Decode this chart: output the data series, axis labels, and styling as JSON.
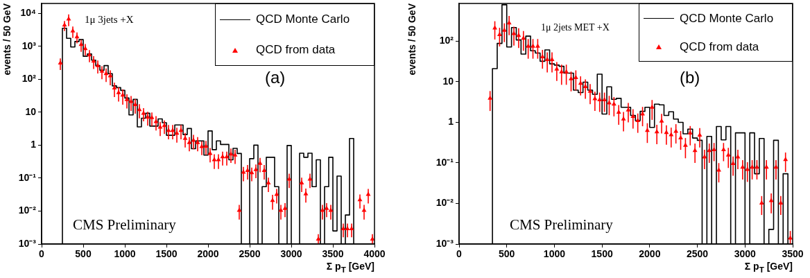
{
  "chart_data": [
    {
      "type": "histogram",
      "xlabel": "Σ p$_{T}$ [GeV]",
      "ylabel": "events / 50 GeV",
      "annotations": [
        "1μ 3jets +X",
        "(a)",
        "CMS Preliminary"
      ],
      "xlim": [
        0,
        4000
      ],
      "xticks": [
        0,
        500,
        1000,
        1500,
        2000,
        2500,
        3000,
        3500,
        4000
      ],
      "ylim": [
        0.001,
        20000
      ],
      "yticks": [
        {
          "value": 0.001,
          "label": "10⁻³"
        },
        {
          "value": 0.01,
          "label": "10⁻²"
        },
        {
          "value": 0.1,
          "label": "10⁻¹"
        },
        {
          "value": 1,
          "label": "1"
        },
        {
          "value": 10,
          "label": "10"
        },
        {
          "value": 100,
          "label": "10²"
        },
        {
          "value": 1000,
          "label": "10³"
        },
        {
          "value": 10000,
          "label": "10⁴"
        }
      ],
      "log": "y",
      "legend": "top right",
      "marker": "triangle",
      "series": [
        {
          "name": "QCD Monte Carlo",
          "type": "histogram",
          "color": "#000000",
          "bins": [
            250,
            300,
            350,
            400,
            450,
            500,
            550,
            600,
            650,
            700,
            750,
            800,
            850,
            900,
            950,
            1000,
            1050,
            1100,
            1150,
            1200,
            1250,
            1300,
            1350,
            1400,
            1450,
            1500,
            1550,
            1600,
            1650,
            1700,
            1750,
            1800,
            1850,
            1900,
            1950,
            2000,
            2050,
            2100,
            2150,
            2200,
            2250,
            2300,
            2350,
            2400,
            2450,
            2500,
            2550,
            2600,
            2650,
            2700,
            2750,
            2800,
            2850,
            2900,
            2950,
            3000,
            3050,
            3100,
            3150,
            3200,
            3250,
            3300,
            3350,
            3400,
            3450,
            3500,
            3550,
            3600,
            3650,
            3700,
            3750
          ],
          "values": [
            3550,
            1750,
            960,
            1400,
            1600,
            500,
            590,
            380,
            260,
            188,
            260,
            148,
            63,
            56,
            46,
            27,
            8.3,
            24.5,
            3.6,
            6.6,
            9.3,
            3.8,
            3.8,
            6.3,
            4.8,
            2.0,
            2.0,
            4.1,
            4.1,
            2.1,
            3.2,
            0.78,
            1.35,
            1.35,
            0.5,
            2.7,
            0.73,
            1.35,
            1.05,
            1.05,
            0.36,
            0.8,
            0.56,
            null,
            null,
            0.39,
            1.0,
            null,
            0.055,
            0.43,
            0.43,
            0.055,
            null,
            null,
            0.98,
            null,
            null,
            0.57,
            0.43,
            0.57,
            0.055,
            0.36,
            null,
            0.055,
            0.43,
            0.0025,
            0.115,
            null,
            0.0076,
            1.6
          ]
        },
        {
          "name": "QCD from data",
          "type": "scatter",
          "color": "#ff0000",
          "x": [
            225,
            275,
            325,
            375,
            425,
            475,
            525,
            575,
            625,
            675,
            725,
            775,
            825,
            875,
            925,
            975,
            1025,
            1075,
            1125,
            1175,
            1225,
            1275,
            1325,
            1375,
            1425,
            1475,
            1525,
            1575,
            1625,
            1675,
            1725,
            1775,
            1825,
            1875,
            1925,
            1975,
            2025,
            2075,
            2125,
            2175,
            2225,
            2275,
            2325,
            2375,
            2425,
            2475,
            2525,
            2575,
            2625,
            2675,
            2725,
            2775,
            2825,
            2875,
            2925,
            2975,
            3125,
            3175,
            3225,
            3325,
            3375,
            3425,
            3475,
            3625,
            3675,
            3725,
            3825,
            3875,
            3925,
            3975
          ],
          "values": [
            310,
            4400,
            6700,
            2900,
            1940,
            1130,
            850,
            550,
            355,
            260,
            175,
            148,
            126,
            54,
            39,
            33,
            24,
            21,
            17,
            12,
            9.3,
            7.1,
            6.8,
            5.2,
            3.5,
            3.9,
            2.8,
            2.8,
            2.3,
            2.8,
            1.6,
            1.2,
            1.4,
            1.2,
            0.9,
            0.93,
            0.56,
            0.36,
            0.36,
            0.44,
            0.44,
            0.54,
            0.5,
            0.0105,
            0.15,
            0.17,
            0.145,
            0.18,
            0.28,
            0.17,
            0.071,
            0.021,
            0.032,
            0.0105,
            0.012,
            0.093,
            0.071,
            0.033,
            0.093,
            0.0014,
            0.0105,
            0.012,
            0.0105,
            0.0029,
            0.0029,
            0.0029,
            0.022,
            0.0105,
            0.032,
            0.0014
          ],
          "errors": [
            120,
            1500,
            2600,
            1100,
            700,
            450,
            330,
            220,
            150,
            110,
            75,
            65,
            60,
            25,
            18,
            16,
            11,
            10,
            8,
            5.5,
            4,
            3.2,
            3,
            2.4,
            1.6,
            1.7,
            1.3,
            1.3,
            1.1,
            1.3,
            0.75,
            0.55,
            0.65,
            0.55,
            0.4,
            0.42,
            0.26,
            0.17,
            0.17,
            0.2,
            0.2,
            0.25,
            0.23,
            0.005,
            0.07,
            0.08,
            0.065,
            0.08,
            0.13,
            0.08,
            0.033,
            0.01,
            0.015,
            0.005,
            0.0055,
            0.043,
            0.033,
            0.015,
            0.043,
            0.0006,
            0.005,
            0.0055,
            0.005,
            0.0013,
            0.0013,
            0.0013,
            0.01,
            0.005,
            0.015,
            0.0006
          ]
        }
      ]
    },
    {
      "type": "histogram",
      "xlabel": "Σ p$_{T}$ [GeV]",
      "ylabel": "events / 50 GeV",
      "annotations": [
        "1μ 2jets MET +X",
        "(b)",
        "CMS Preliminary"
      ],
      "xlim": [
        0,
        3500
      ],
      "xticks": [
        0,
        500,
        1000,
        1500,
        2000,
        2500,
        3000,
        3500
      ],
      "ylim": [
        0.001,
        850
      ],
      "yticks": [
        {
          "value": 0.001,
          "label": "10⁻³"
        },
        {
          "value": 0.01,
          "label": "10⁻²"
        },
        {
          "value": 0.1,
          "label": "10⁻¹"
        },
        {
          "value": 1,
          "label": "1"
        },
        {
          "value": 10,
          "label": "10"
        },
        {
          "value": 100,
          "label": "10²"
        }
      ],
      "log": "y",
      "legend": "top right",
      "marker": "triangle",
      "series": [
        {
          "name": "QCD Monte Carlo",
          "type": "histogram",
          "color": "#000000",
          "bins": [
            350,
            400,
            450,
            500,
            550,
            600,
            650,
            700,
            750,
            800,
            850,
            900,
            950,
            1000,
            1050,
            1100,
            1150,
            1200,
            1250,
            1300,
            1350,
            1400,
            1450,
            1500,
            1550,
            1600,
            1650,
            1700,
            1750,
            1800,
            1850,
            1900,
            1950,
            2000,
            2050,
            2100,
            2150,
            2200,
            2250,
            2300,
            2350,
            2400,
            2450,
            2500,
            2550,
            2600,
            2650,
            2700,
            2750,
            2800,
            2850,
            2900,
            2950,
            3000,
            3050,
            3100,
            3150,
            3200,
            3250,
            3300,
            3350,
            3400,
            3450
          ],
          "values": [
            21,
            88,
            790,
            72,
            217,
            107,
            48,
            133,
            58,
            51,
            32,
            61,
            27.6,
            25.7,
            24,
            16.3,
            16.3,
            6.2,
            5.4,
            9.8,
            6.2,
            4.9,
            15.4,
            1.6,
            7.5,
            3.7,
            3.9,
            2.35,
            2.35,
            1.48,
            1.1,
            1.86,
            2.35,
            0.75,
            2.8,
            2.7,
            1.48,
            1.82,
            1.2,
            1.0,
            0.52,
            0.68,
            0.41,
            0.36,
            null,
            0.45,
            null,
            0.79,
            0.37,
            0.79,
            null,
            0.55,
            0.55,
            null,
            0.55,
            0.054,
            0.4,
            null,
            0.0023,
            0.36,
            null,
            0.054
          ]
        },
        {
          "name": "QCD from data",
          "type": "scatter",
          "color": "#ff0000",
          "x": [
            325,
            375,
            425,
            475,
            525,
            575,
            625,
            675,
            725,
            775,
            825,
            875,
            925,
            975,
            1025,
            1075,
            1125,
            1175,
            1225,
            1275,
            1325,
            1375,
            1425,
            1475,
            1525,
            1575,
            1625,
            1675,
            1725,
            1775,
            1825,
            1875,
            1925,
            1975,
            2025,
            2075,
            2125,
            2175,
            2225,
            2275,
            2325,
            2375,
            2425,
            2475,
            2525,
            2575,
            2625,
            2675,
            2725,
            2775,
            2825,
            2875,
            2925,
            2975,
            3025,
            3075,
            3125,
            3175,
            3225,
            3275,
            3325,
            3375,
            3425,
            3475
          ],
          "values": [
            3.9,
            210,
            144,
            185,
            280,
            153,
            138,
            118,
            75,
            75,
            75,
            41,
            35,
            35,
            20.5,
            17.4,
            17.4,
            11.8,
            12.6,
            9.1,
            7.6,
            5.8,
            3.8,
            3.6,
            3.6,
            3.0,
            2.8,
            1.77,
            1.2,
            2.0,
            1.4,
            1.1,
            1.6,
            0.63,
            2.35,
            0.58,
            1.07,
            0.56,
            0.49,
            0.6,
            0.41,
            0.27,
            0.54,
            0.2,
            0.48,
            0.14,
            0.2,
            0.21,
            0.066,
            0.21,
            0.155,
            0.096,
            0.14,
            0.078,
            0.069,
            0.078,
            0.078,
            0.0102,
            0.078,
            0.0117,
            0.078,
            0.0102,
            0.12,
            0.0014
          ],
          "errors": [
            2,
            100,
            70,
            90,
            140,
            75,
            70,
            60,
            38,
            38,
            38,
            20,
            18,
            18,
            10,
            9,
            9,
            6,
            6.5,
            4.5,
            3.8,
            3,
            1.9,
            1.8,
            1.8,
            1.5,
            1.4,
            0.9,
            0.6,
            1,
            0.7,
            0.55,
            0.8,
            0.32,
            1.2,
            0.29,
            0.54,
            0.28,
            0.25,
            0.3,
            0.2,
            0.14,
            0.27,
            0.1,
            0.24,
            0.07,
            0.1,
            0.1,
            0.033,
            0.1,
            0.08,
            0.048,
            0.07,
            0.039,
            0.035,
            0.039,
            0.039,
            0.005,
            0.039,
            0.006,
            0.039,
            0.005,
            0.06,
            0.0007
          ]
        }
      ]
    }
  ]
}
